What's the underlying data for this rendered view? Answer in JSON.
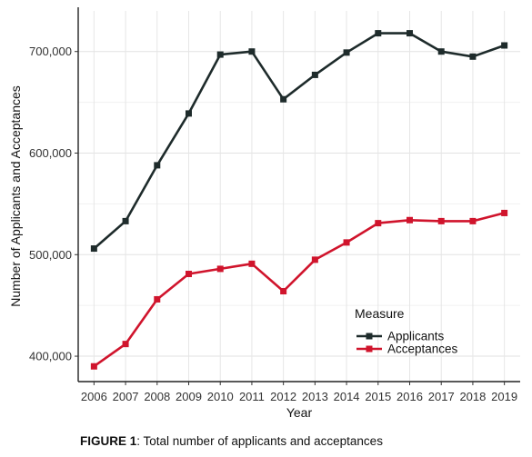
{
  "caption": {
    "lead": "FIGURE 1",
    "text": ": Total number of applicants and acceptances"
  },
  "chart_data": {
    "type": "line",
    "xlabel": "Year",
    "ylabel": "Number of Applicants and Acceptances",
    "x": [
      "2006",
      "2007",
      "2008",
      "2009",
      "2010",
      "2011",
      "2012",
      "2013",
      "2014",
      "2015",
      "2016",
      "2017",
      "2018",
      "2019"
    ],
    "ylim": [
      375000,
      740000
    ],
    "yticks": [
      400000,
      500000,
      600000,
      700000
    ],
    "ytick_labels": [
      "400,000",
      "500,000",
      "600,000",
      "700,000"
    ],
    "grid": true,
    "legend": {
      "title": "Measure",
      "position": "bottom-right"
    },
    "series": [
      {
        "name": "Applicants",
        "color": "#1e2b2b",
        "values": [
          506000,
          533000,
          588000,
          639000,
          697000,
          700000,
          653000,
          677000,
          699000,
          718000,
          718000,
          700000,
          695000,
          706000
        ]
      },
      {
        "name": "Acceptances",
        "color": "#d0142c",
        "values": [
          390000,
          412000,
          456000,
          481000,
          486000,
          491000,
          464000,
          495000,
          512000,
          531000,
          534000,
          533000,
          533000,
          541000
        ]
      }
    ]
  }
}
